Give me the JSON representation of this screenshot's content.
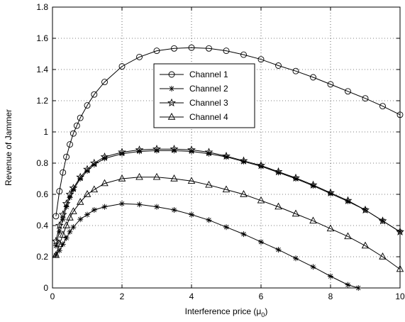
{
  "chart_data": {
    "type": "line",
    "title": "",
    "xlabel": "Interference price (μ",
    "xlabel_sub": "0",
    "xlabel_end": ")",
    "ylabel": "Revenue of Jammer",
    "xlim": [
      0,
      10
    ],
    "ylim": [
      0,
      1.8
    ],
    "xticks": [
      0,
      2,
      4,
      6,
      8,
      10
    ],
    "yticks": [
      0,
      0.2,
      0.4,
      0.6,
      0.8,
      1,
      1.2,
      1.4,
      1.6,
      1.8
    ],
    "grid": true,
    "legend_position": "upper-center",
    "series": [
      {
        "name": "Channel 1",
        "marker": "circle",
        "x": [
          0.1,
          0.2,
          0.3,
          0.4,
          0.5,
          0.6,
          0.7,
          0.8,
          1.0,
          1.2,
          1.5,
          2.0,
          2.5,
          3.0,
          3.5,
          4.0,
          4.5,
          5.0,
          5.5,
          6.0,
          6.5,
          7.0,
          7.5,
          8.0,
          8.5,
          9.0,
          9.5,
          10.0
        ],
        "values": [
          0.46,
          0.62,
          0.74,
          0.84,
          0.92,
          0.99,
          1.04,
          1.09,
          1.17,
          1.24,
          1.32,
          1.42,
          1.48,
          1.52,
          1.535,
          1.54,
          1.535,
          1.52,
          1.495,
          1.465,
          1.425,
          1.39,
          1.35,
          1.305,
          1.26,
          1.215,
          1.165,
          1.11
        ]
      },
      {
        "name": "Channel 2",
        "marker": "asterisk",
        "x": [
          0.1,
          0.2,
          0.3,
          0.4,
          0.5,
          0.6,
          0.8,
          1.0,
          1.2,
          1.5,
          2.0,
          2.5,
          3.0,
          3.5,
          4.0,
          4.5,
          5.0,
          5.5,
          6.0,
          6.5,
          7.0,
          7.5,
          8.0,
          8.5,
          9.0,
          9.5,
          10.0
        ],
        "values": [
          0.27,
          0.36,
          0.44,
          0.52,
          0.58,
          0.63,
          0.7,
          0.75,
          0.79,
          0.83,
          0.86,
          0.875,
          0.88,
          0.88,
          0.875,
          0.86,
          0.84,
          0.81,
          0.78,
          0.74,
          0.7,
          0.655,
          0.605,
          0.555,
          0.5,
          0.43,
          0.36
        ]
      },
      {
        "name": "Channel 3",
        "marker": "star",
        "x": [
          0.1,
          0.2,
          0.3,
          0.4,
          0.5,
          0.6,
          0.8,
          1.0,
          1.2,
          1.5,
          2.0,
          2.5,
          3.0,
          3.5,
          4.0,
          4.5,
          5.0,
          5.5,
          6.0,
          6.5,
          7.0,
          7.5,
          8.0,
          8.5,
          9.0,
          9.5,
          10.0
        ],
        "values": [
          0.3,
          0.4,
          0.47,
          0.54,
          0.6,
          0.64,
          0.71,
          0.76,
          0.8,
          0.84,
          0.87,
          0.885,
          0.89,
          0.89,
          0.885,
          0.87,
          0.845,
          0.815,
          0.785,
          0.745,
          0.705,
          0.66,
          0.61,
          0.56,
          0.5,
          0.43,
          0.36
        ]
      },
      {
        "name": "Channel 4",
        "marker": "triangle",
        "x": [
          0.1,
          0.2,
          0.3,
          0.4,
          0.5,
          0.6,
          0.8,
          1.0,
          1.2,
          1.5,
          2.0,
          2.5,
          3.0,
          3.5,
          4.0,
          4.5,
          5.0,
          5.5,
          6.0,
          6.5,
          7.0,
          7.5,
          8.0,
          8.5,
          9.0,
          9.5,
          10.0
        ],
        "values": [
          0.21,
          0.28,
          0.34,
          0.4,
          0.45,
          0.49,
          0.55,
          0.6,
          0.63,
          0.67,
          0.7,
          0.71,
          0.71,
          0.7,
          0.685,
          0.66,
          0.63,
          0.6,
          0.56,
          0.52,
          0.475,
          0.43,
          0.38,
          0.33,
          0.27,
          0.2,
          0.12
        ]
      },
      {
        "name": "",
        "marker": "asterisk",
        "x": [
          0.1,
          0.2,
          0.3,
          0.4,
          0.5,
          0.6,
          0.8,
          1.0,
          1.2,
          1.5,
          2.0,
          2.5,
          3.0,
          3.5,
          4.0,
          4.5,
          5.0,
          5.5,
          6.0,
          6.5,
          7.0,
          7.5,
          8.0,
          8.5,
          8.8
        ],
        "values": [
          0.21,
          0.24,
          0.28,
          0.32,
          0.36,
          0.39,
          0.44,
          0.47,
          0.5,
          0.52,
          0.54,
          0.535,
          0.52,
          0.5,
          0.47,
          0.435,
          0.39,
          0.345,
          0.295,
          0.245,
          0.19,
          0.135,
          0.075,
          0.02,
          0.0
        ]
      }
    ]
  }
}
